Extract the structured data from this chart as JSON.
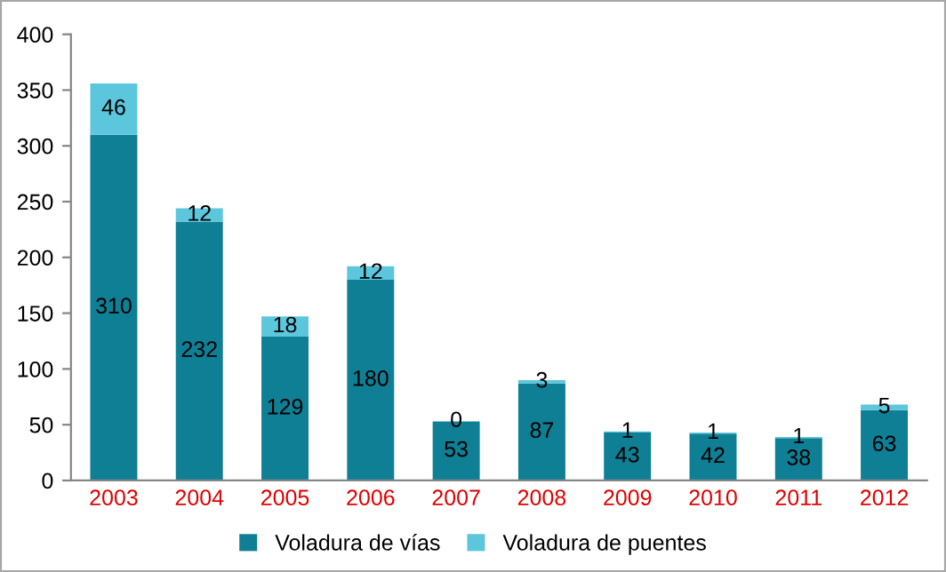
{
  "chart_data": {
    "type": "bar",
    "stacked": true,
    "categories": [
      "2003",
      "2004",
      "2005",
      "2006",
      "2007",
      "2008",
      "2009",
      "2010",
      "2011",
      "2012"
    ],
    "series": [
      {
        "name": "Voladura de vías",
        "color": "#0f7f95",
        "values": [
          310,
          232,
          129,
          180,
          53,
          87,
          43,
          42,
          38,
          63
        ]
      },
      {
        "name": "Voladura de puentes",
        "color": "#5cc6dc",
        "values": [
          46,
          12,
          18,
          12,
          0,
          3,
          1,
          1,
          1,
          5
        ]
      }
    ],
    "ylim": [
      0,
      400
    ],
    "yticks": [
      0,
      50,
      100,
      150,
      200,
      250,
      300,
      350,
      400
    ],
    "data_labels": true,
    "legend": "bottom",
    "grid": false
  }
}
